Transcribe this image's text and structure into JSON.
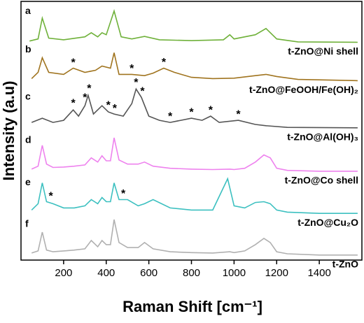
{
  "chart_data": {
    "type": "line",
    "xlabel": "Raman Shift [cm⁻¹]",
    "ylabel": "Intensity (a.u)",
    "xlim": [
      0,
      1600
    ],
    "ylim": [
      0,
      6.2
    ],
    "xticks": [
      200,
      400,
      600,
      800,
      1000,
      1200,
      1400
    ],
    "series": [
      {
        "label": "a",
        "name": "t-ZnO@Ni shell",
        "color": "#6fb13a",
        "x": [
          40,
          80,
          100,
          130,
          200,
          300,
          330,
          360,
          380,
          400,
          437,
          470,
          520,
          580,
          650,
          800,
          950,
          980,
          1000,
          1100,
          1150,
          1200,
          1300,
          1580
        ],
        "values": [
          5.25,
          5.3,
          5.8,
          5.32,
          5.28,
          5.35,
          5.45,
          5.35,
          5.45,
          5.4,
          5.97,
          5.35,
          5.3,
          5.36,
          5.28,
          5.26,
          5.28,
          5.4,
          5.3,
          5.4,
          5.55,
          5.3,
          5.23,
          5.22
        ]
      },
      {
        "label": "b",
        "name": "t-ZnO@FeOOH/Fe(OH)₂",
        "color": "#a0741f",
        "x": [
          50,
          80,
          100,
          130,
          200,
          245,
          300,
          350,
          380,
          420,
          437,
          460,
          520,
          580,
          620,
          670,
          720,
          800,
          900,
          1000,
          1100,
          1150,
          1200,
          1300,
          1580
        ],
        "values": [
          4.35,
          4.5,
          4.85,
          4.5,
          4.45,
          4.6,
          4.5,
          4.55,
          4.65,
          4.6,
          4.97,
          4.45,
          4.45,
          4.42,
          4.48,
          4.6,
          4.5,
          4.38,
          4.35,
          4.36,
          4.42,
          4.45,
          4.4,
          4.33,
          4.3
        ]
      },
      {
        "label": "c",
        "name": "t-ZnO@Al(OH)₃",
        "color": "#555555",
        "x": [
          50,
          100,
          150,
          200,
          245,
          270,
          300,
          315,
          340,
          380,
          410,
          437,
          480,
          520,
          540,
          565,
          600,
          650,
          700,
          750,
          800,
          850,
          890,
          930,
          1020,
          1100,
          1150,
          1250,
          1580
        ],
        "values": [
          3.3,
          3.4,
          3.3,
          3.35,
          3.6,
          3.45,
          3.7,
          3.95,
          3.5,
          3.7,
          3.55,
          3.5,
          3.45,
          3.75,
          4.1,
          3.9,
          3.45,
          3.35,
          3.3,
          3.35,
          3.4,
          3.35,
          3.45,
          3.3,
          3.35,
          3.25,
          3.22,
          3.18,
          3.17
        ]
      },
      {
        "label": "d",
        "name": "t-ZnO@Co shell",
        "color": "#ee82ee",
        "x": [
          50,
          80,
          100,
          120,
          150,
          200,
          250,
          300,
          330,
          360,
          380,
          400,
          420,
          437,
          460,
          500,
          550,
          580,
          620,
          700,
          800,
          900,
          980,
          1000,
          1050,
          1100,
          1140,
          1170,
          1200,
          1250,
          1400,
          1580
        ],
        "values": [
          2.18,
          2.25,
          2.75,
          2.3,
          2.22,
          2.23,
          2.25,
          2.28,
          2.45,
          2.35,
          2.5,
          2.38,
          2.38,
          2.93,
          2.4,
          2.3,
          2.3,
          2.35,
          2.25,
          2.2,
          2.18,
          2.17,
          2.18,
          2.17,
          2.2,
          2.35,
          2.52,
          2.45,
          2.2,
          2.15,
          2.13,
          2.13
        ]
      },
      {
        "label": "e",
        "name": "t-ZnO@Cu₂O",
        "color": "#3cc0c0",
        "x": [
          50,
          80,
          100,
          120,
          150,
          200,
          250,
          300,
          330,
          360,
          380,
          400,
          420,
          437,
          460,
          500,
          550,
          580,
          620,
          700,
          800,
          900,
          970,
          1000,
          1050,
          1100,
          1140,
          1170,
          1200,
          1250,
          1400,
          1580
        ],
        "values": [
          1.2,
          1.35,
          1.85,
          1.4,
          1.35,
          1.25,
          1.25,
          1.3,
          1.45,
          1.35,
          1.5,
          1.4,
          1.4,
          1.85,
          1.45,
          1.45,
          1.3,
          1.35,
          1.45,
          1.25,
          1.2,
          1.2,
          1.95,
          1.3,
          1.25,
          1.38,
          1.4,
          1.35,
          1.2,
          1.15,
          1.12,
          1.12
        ]
      },
      {
        "label": "f",
        "name": "t-ZnO",
        "color": "#b0b0b0",
        "x": [
          50,
          80,
          100,
          120,
          150,
          200,
          250,
          300,
          330,
          360,
          380,
          400,
          420,
          437,
          460,
          500,
          550,
          580,
          620,
          700,
          800,
          900,
          980,
          1000,
          1050,
          1100,
          1140,
          1170,
          1200,
          1250,
          1400,
          1580
        ],
        "values": [
          0.17,
          0.22,
          0.67,
          0.24,
          0.2,
          0.22,
          0.24,
          0.27,
          0.47,
          0.32,
          0.47,
          0.37,
          0.37,
          0.97,
          0.42,
          0.3,
          0.3,
          0.42,
          0.27,
          0.2,
          0.18,
          0.17,
          0.2,
          0.18,
          0.22,
          0.37,
          0.52,
          0.42,
          0.2,
          0.15,
          0.12,
          0.12
        ]
      }
    ],
    "annotations": [
      {
        "text": "*",
        "x": 245,
        "y": 4.72
      },
      {
        "text": "*",
        "x": 520,
        "y": 4.58
      },
      {
        "text": "*",
        "x": 670,
        "y": 4.73
      },
      {
        "text": "*",
        "x": 245,
        "y": 3.75
      },
      {
        "text": "*",
        "x": 300,
        "y": 3.88
      },
      {
        "text": "*",
        "x": 320,
        "y": 4.1
      },
      {
        "text": "*",
        "x": 410,
        "y": 3.7
      },
      {
        "text": "*",
        "x": 440,
        "y": 3.62
      },
      {
        "text": "*",
        "x": 540,
        "y": 4.24
      },
      {
        "text": "*",
        "x": 570,
        "y": 4.03
      },
      {
        "text": "*",
        "x": 700,
        "y": 3.43
      },
      {
        "text": "*",
        "x": 800,
        "y": 3.53
      },
      {
        "text": "*",
        "x": 890,
        "y": 3.58
      },
      {
        "text": "*",
        "x": 1020,
        "y": 3.48
      },
      {
        "text": "*",
        "x": 140,
        "y": 1.52
      },
      {
        "text": "*",
        "x": 480,
        "y": 1.58
      }
    ]
  }
}
